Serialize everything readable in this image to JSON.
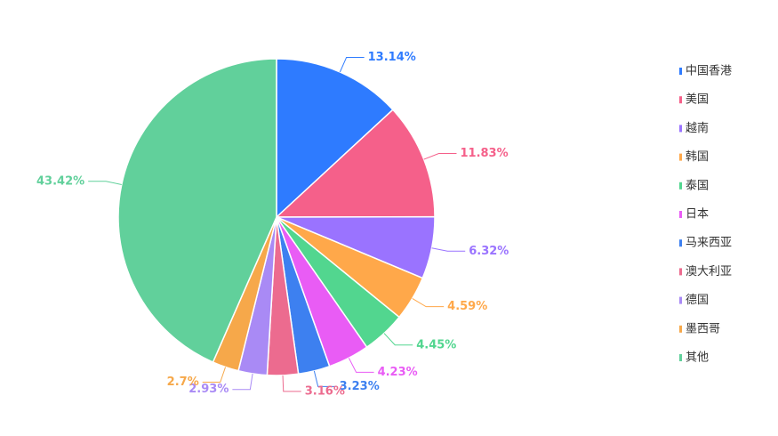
{
  "chart_data": {
    "type": "pie",
    "categories": [
      "中国香港",
      "美国",
      "越南",
      "韩国",
      "泰国",
      "日本",
      "马来西亚",
      "澳大利亚",
      "德国",
      "墨西哥",
      "其他"
    ],
    "values": [
      13.14,
      11.83,
      6.32,
      4.59,
      4.45,
      4.23,
      3.23,
      3.16,
      2.93,
      2.7,
      43.42
    ],
    "value_labels": [
      "13.14%",
      "11.83%",
      "6.32%",
      "4.59%",
      "4.45%",
      "4.23%",
      "3.23%",
      "3.16%",
      "2.93%",
      "2.7%",
      "43.42%"
    ],
    "colors": [
      "#2e7bff",
      "#f5608a",
      "#9a73ff",
      "#ffa84a",
      "#52d68f",
      "#e95cf5",
      "#3d80f0",
      "#ec6b8f",
      "#a98af5",
      "#f6a84a",
      "#61d09b"
    ],
    "legend": "right"
  }
}
